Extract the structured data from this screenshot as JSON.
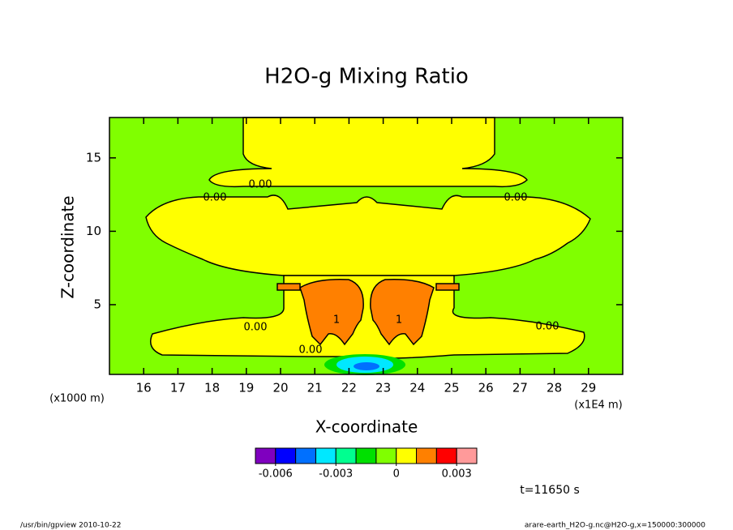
{
  "chart_data": {
    "type": "contour",
    "title": "H2O-g Mixing Ratio",
    "x_label": "X-coordinate",
    "y_label": "Z-coordinate",
    "x_unit": "(x1E4 m)",
    "y_unit": "(x1000 m)",
    "xlim": [
      15,
      30
    ],
    "ylim": [
      0.25,
      17.75
    ],
    "xticks": [
      16,
      17,
      18,
      19,
      20,
      21,
      22,
      23,
      24,
      25,
      26,
      27,
      28,
      29
    ],
    "yticks": [
      5,
      10,
      15
    ],
    "contour_labels": [
      "0.00",
      "0.00",
      "0.00",
      "0.00",
      "0.00",
      "0.00",
      "1",
      "1"
    ],
    "colorbar": {
      "colors": [
        "#7f00bf",
        "#0000ff",
        "#0070ff",
        "#00e8ff",
        "#00ff90",
        "#00e000",
        "#80ff00",
        "#ffff00",
        "#ff8000",
        "#ff0000",
        "#ff9a9a"
      ],
      "clim": [
        -0.007,
        0.004
      ],
      "ticks": [
        -0.006,
        -0.003,
        0,
        0.003
      ]
    },
    "annotation": "t=11650 s"
  },
  "footer": {
    "left": "/usr/bin/gpview  2010-10-22",
    "right": "arare-earth_H2O-g.nc@H2O-g,x=150000:300000"
  }
}
